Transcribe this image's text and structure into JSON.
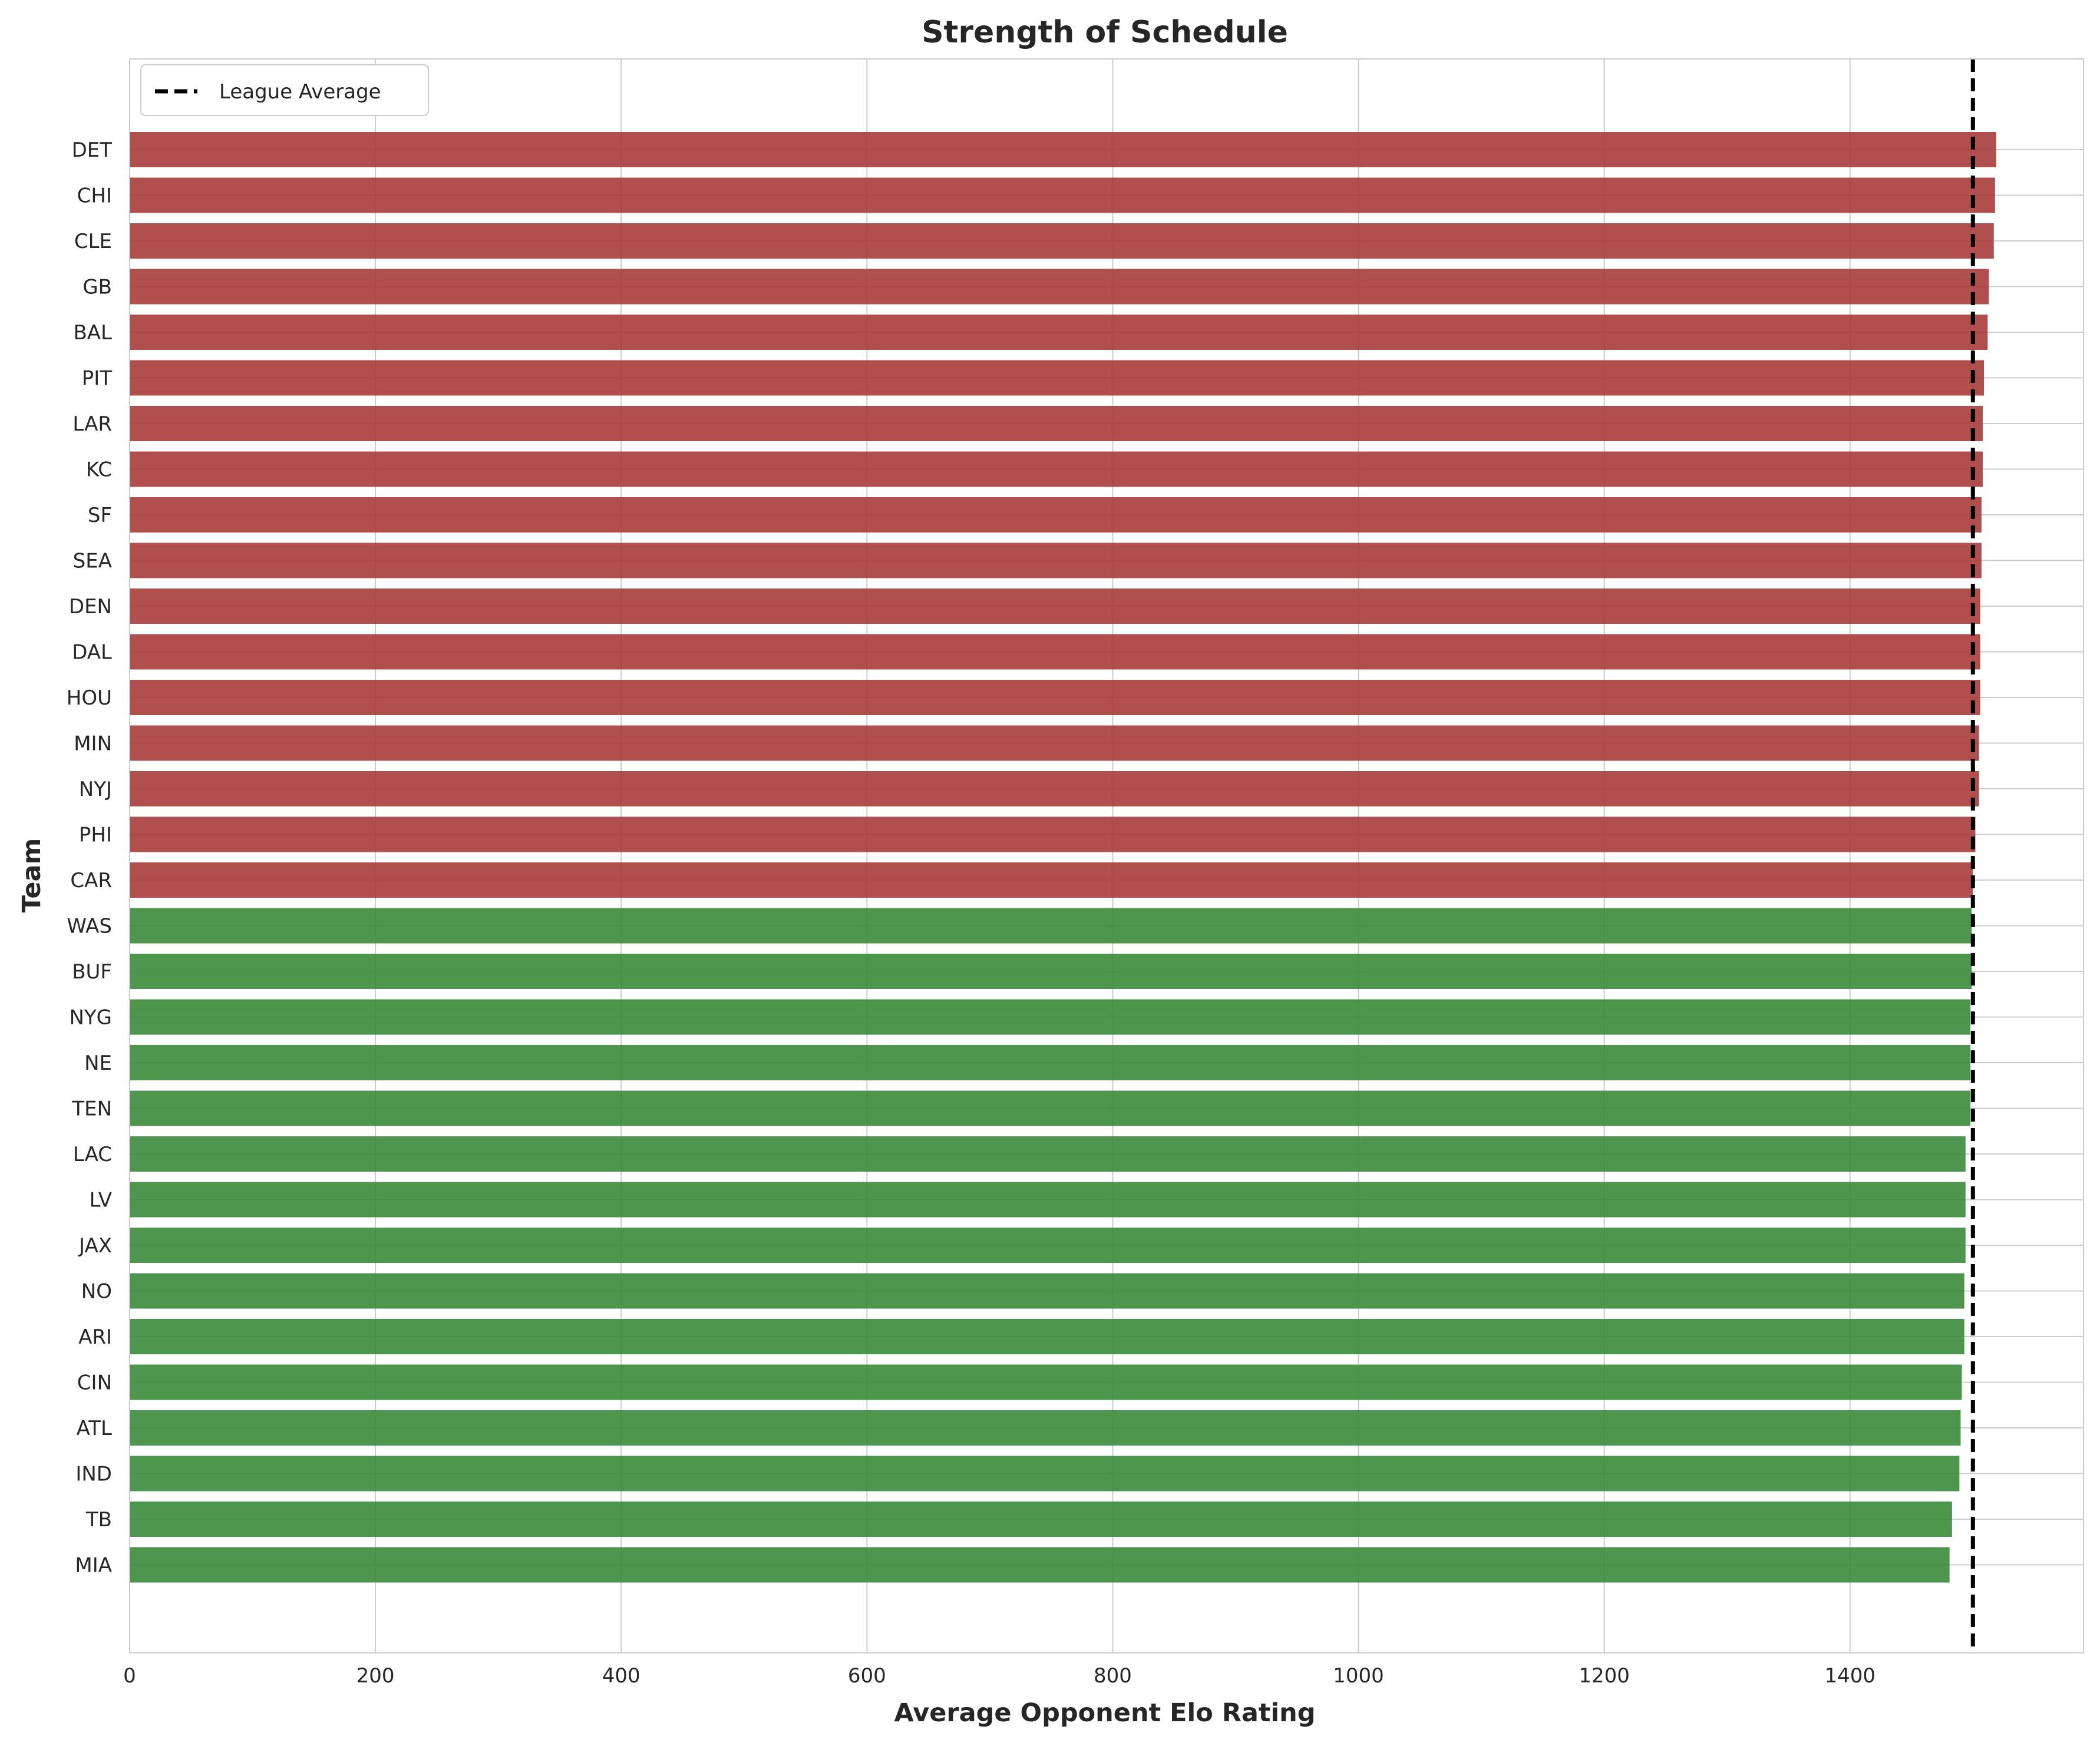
{
  "chart_data": {
    "type": "bar",
    "orientation": "horizontal",
    "title": "Strength of Schedule",
    "xlabel": "Average Opponent Elo Rating",
    "ylabel": "Team",
    "xlim": [
      0,
      1590
    ],
    "xticks": [
      0,
      200,
      400,
      600,
      800,
      1000,
      1200,
      1400
    ],
    "grid": true,
    "legend": {
      "placement": "top-left",
      "entries": [
        "League Average"
      ]
    },
    "reference_line": {
      "name": "League Average",
      "value": 1500,
      "style": "dashed",
      "color": "#000000"
    },
    "colors": {
      "above_average": "#a93c3c",
      "below_average": "#3b8a3b"
    },
    "categories": [
      "DET",
      "CHI",
      "CLE",
      "GB",
      "BAL",
      "PIT",
      "LAR",
      "KC",
      "SF",
      "SEA",
      "DEN",
      "DAL",
      "HOU",
      "MIN",
      "NYJ",
      "PHI",
      "CAR",
      "WAS",
      "BUF",
      "NYG",
      "NE",
      "TEN",
      "LAC",
      "LV",
      "JAX",
      "NO",
      "ARI",
      "CIN",
      "ATL",
      "IND",
      "TB",
      "MIA"
    ],
    "values": [
      1519,
      1518,
      1517,
      1513,
      1512,
      1509,
      1508,
      1508,
      1507,
      1507,
      1506,
      1506,
      1506,
      1505,
      1505,
      1502,
      1500,
      1499,
      1499,
      1498,
      1498,
      1498,
      1494,
      1494,
      1494,
      1493,
      1493,
      1491,
      1490,
      1489,
      1483,
      1481
    ]
  }
}
